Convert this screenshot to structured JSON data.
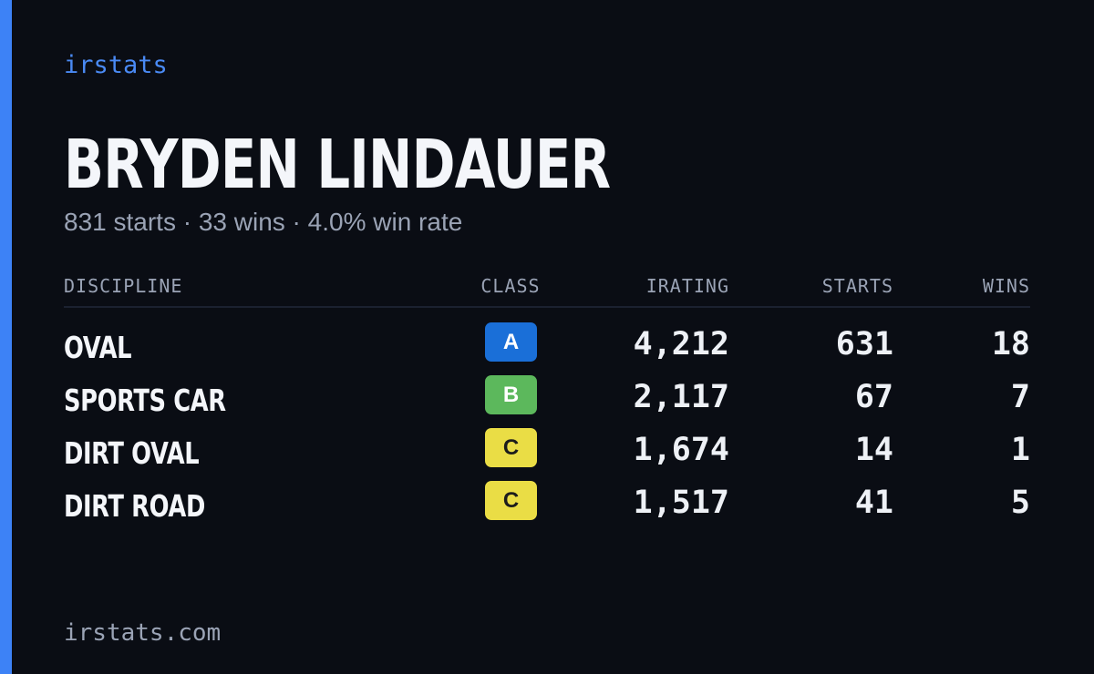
{
  "brand": {
    "name": "irstats"
  },
  "player": {
    "name": "BRYDEN LINDAUER",
    "summary": "831 starts · 33 wins · 4.0% win rate"
  },
  "table": {
    "headers": {
      "discipline": "DISCIPLINE",
      "class": "CLASS",
      "irating": "IRATING",
      "starts": "STARTS",
      "wins": "WINS"
    },
    "rows": [
      {
        "discipline": "OVAL",
        "class": "A",
        "class_bg": "#1a6fd8",
        "class_fg": "#ffffff",
        "irating": "4,212",
        "starts": "631",
        "wins": "18"
      },
      {
        "discipline": "SPORTS CAR",
        "class": "B",
        "class_bg": "#5cb85c",
        "class_fg": "#ffffff",
        "irating": "2,117",
        "starts": "67",
        "wins": "7"
      },
      {
        "discipline": "DIRT OVAL",
        "class": "C",
        "class_bg": "#eadd45",
        "class_fg": "#1c1c1c",
        "irating": "1,674",
        "starts": "14",
        "wins": "1"
      },
      {
        "discipline": "DIRT ROAD",
        "class": "C",
        "class_bg": "#eadd45",
        "class_fg": "#1c1c1c",
        "irating": "1,517",
        "starts": "41",
        "wins": "5"
      }
    ]
  },
  "footer": {
    "url": "irstats.com"
  },
  "colors": {
    "background": "#0a0d14",
    "accent": "#3d82f6",
    "muted_text": "#9aa3b5",
    "primary_text": "#f4f6fa"
  }
}
